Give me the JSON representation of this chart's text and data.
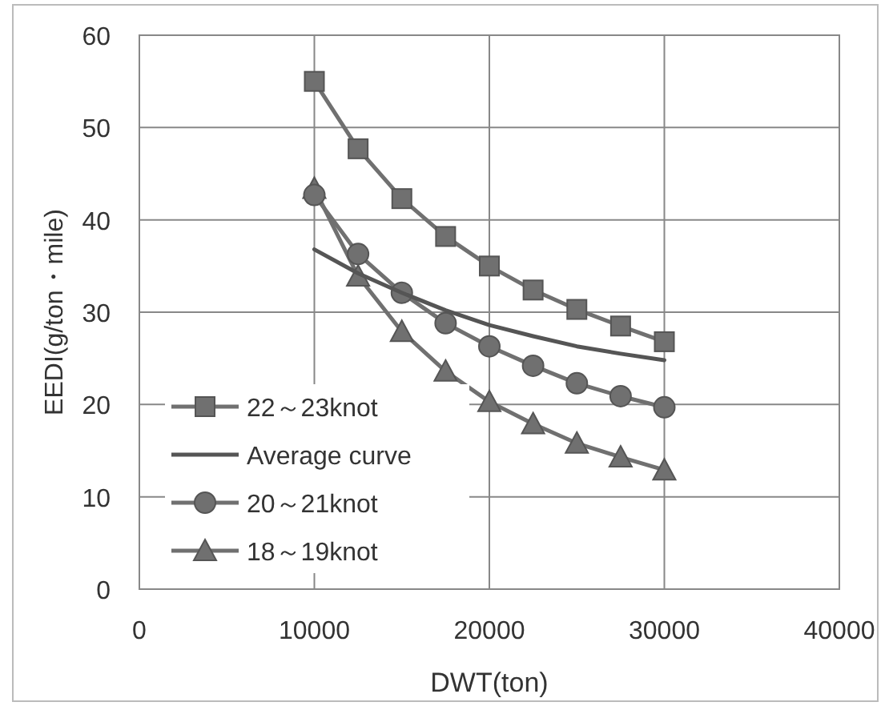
{
  "chart_data": {
    "type": "line",
    "xlabel": "DWT(ton)",
    "ylabel": "EEDI(g/ton・mile)",
    "x": [
      10000,
      12500,
      15000,
      17500,
      20000,
      22500,
      25000,
      27500,
      30000
    ],
    "series": [
      {
        "name": "22～23knot",
        "color": "#707070",
        "marker": "square",
        "values": [
          55.0,
          47.7,
          42.3,
          38.2,
          35.0,
          32.4,
          30.3,
          28.5,
          26.8
        ]
      },
      {
        "name": "Average curve",
        "color": "#555555",
        "marker": "none",
        "values": [
          36.8,
          34.2,
          32.1,
          30.2,
          28.6,
          27.4,
          26.3,
          25.5,
          24.8
        ]
      },
      {
        "name": "20～21knot",
        "color": "#707070",
        "marker": "circle",
        "values": [
          42.7,
          36.3,
          32.1,
          28.8,
          26.3,
          24.2,
          22.3,
          20.9,
          19.7
        ]
      },
      {
        "name": "18～19knot",
        "color": "#707070",
        "marker": "triangle",
        "values": [
          43.4,
          33.9,
          27.9,
          23.6,
          20.3,
          17.9,
          15.8,
          14.3,
          12.9
        ]
      }
    ],
    "xlim": [
      0,
      40000
    ],
    "xticks": [
      0,
      10000,
      20000,
      30000,
      40000
    ],
    "ylim": [
      0,
      60
    ],
    "yticks": [
      0,
      10,
      20,
      30,
      40,
      50,
      60
    ],
    "grid": true,
    "legend": "bottom left",
    "line_style": "solid"
  }
}
